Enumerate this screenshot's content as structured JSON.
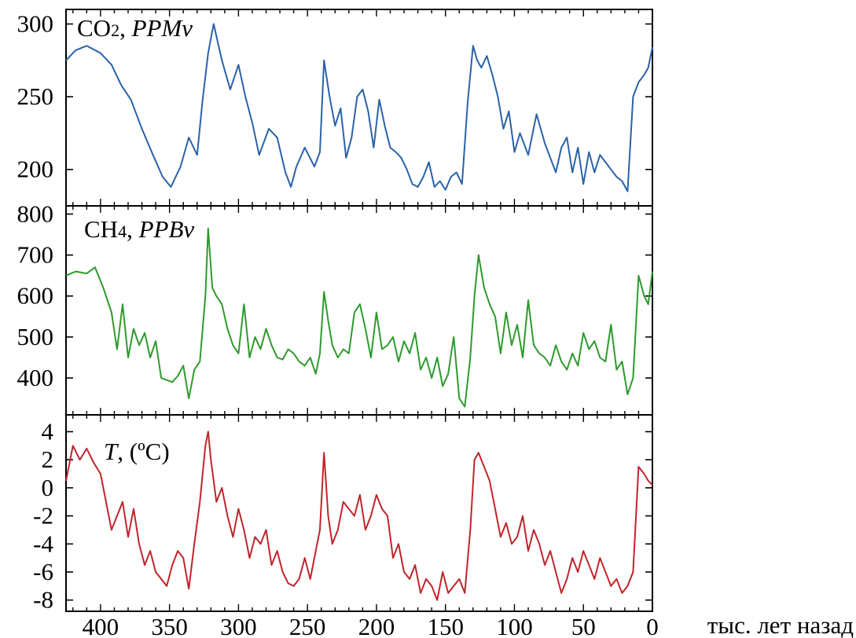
{
  "chart_data": {
    "type": "line",
    "x_unit_label": "тыс. лет назад",
    "xlim": [
      425,
      0
    ],
    "x_ticks": [
      400,
      350,
      300,
      250,
      200,
      150,
      100,
      50,
      0
    ],
    "panels": [
      {
        "id": "co2",
        "label_main": "CO",
        "label_sub": "2",
        "label_sep": ", ",
        "label_italic": "PPMv",
        "label_suffix": "",
        "color": "#2a62a8",
        "ylim": [
          175,
          310
        ],
        "y_ticks": [
          200,
          250,
          300
        ],
        "series": {
          "x": [
            425,
            418,
            410,
            400,
            392,
            385,
            378,
            370,
            362,
            355,
            349,
            342,
            336,
            330,
            326,
            322,
            318,
            312,
            306,
            300,
            295,
            290,
            285,
            278,
            272,
            266,
            262,
            258,
            252,
            245,
            241,
            238,
            234,
            230,
            226,
            222,
            218,
            214,
            210,
            206,
            202,
            198,
            194,
            190,
            186,
            182,
            178,
            174,
            170,
            166,
            162,
            158,
            154,
            150,
            146,
            142,
            138,
            134,
            130,
            127,
            124,
            120,
            116,
            112,
            108,
            104,
            100,
            96,
            90,
            84,
            78,
            74,
            70,
            66,
            62,
            58,
            54,
            50,
            46,
            42,
            38,
            34,
            30,
            26,
            22,
            18,
            14,
            10,
            6,
            3,
            0
          ],
          "y": [
            275,
            282,
            285,
            280,
            272,
            258,
            248,
            228,
            210,
            195,
            188,
            202,
            222,
            210,
            248,
            280,
            300,
            275,
            255,
            272,
            250,
            232,
            210,
            228,
            222,
            198,
            188,
            202,
            215,
            202,
            212,
            275,
            250,
            230,
            242,
            208,
            222,
            250,
            255,
            240,
            215,
            248,
            230,
            215,
            212,
            208,
            200,
            190,
            188,
            195,
            205,
            188,
            192,
            186,
            195,
            198,
            190,
            245,
            285,
            275,
            270,
            278,
            265,
            250,
            228,
            240,
            212,
            225,
            210,
            238,
            218,
            208,
            198,
            215,
            222,
            198,
            215,
            190,
            212,
            198,
            210,
            205,
            200,
            195,
            192,
            185,
            250,
            260,
            265,
            270,
            284
          ]
        }
      },
      {
        "id": "ch4",
        "label_main": "CH",
        "label_sub": "4",
        "label_sep": ", ",
        "label_italic": "PPBv",
        "label_suffix": "",
        "color": "#2e9a2e",
        "ylim": [
          310,
          820
        ],
        "y_ticks": [
          400,
          500,
          600,
          700,
          800
        ],
        "series": {
          "x": [
            425,
            418,
            410,
            404,
            398,
            392,
            388,
            384,
            380,
            376,
            372,
            368,
            364,
            360,
            356,
            352,
            348,
            344,
            340,
            336,
            332,
            328,
            324,
            322,
            319,
            316,
            312,
            308,
            304,
            300,
            296,
            292,
            288,
            284,
            280,
            276,
            272,
            268,
            264,
            260,
            256,
            252,
            248,
            244,
            241,
            238,
            235,
            232,
            228,
            224,
            220,
            216,
            212,
            208,
            204,
            200,
            196,
            192,
            188,
            184,
            180,
            176,
            172,
            168,
            164,
            160,
            156,
            152,
            148,
            144,
            140,
            136,
            132,
            129,
            126,
            122,
            118,
            114,
            110,
            106,
            102,
            98,
            94,
            90,
            86,
            82,
            78,
            74,
            70,
            66,
            62,
            58,
            54,
            50,
            46,
            42,
            38,
            34,
            30,
            26,
            22,
            18,
            14,
            10,
            6,
            3,
            0
          ],
          "y": [
            650,
            660,
            655,
            670,
            620,
            560,
            470,
            580,
            450,
            520,
            480,
            510,
            450,
            490,
            400,
            395,
            390,
            405,
            430,
            350,
            420,
            440,
            600,
            765,
            620,
            600,
            580,
            520,
            480,
            460,
            580,
            450,
            500,
            470,
            520,
            480,
            450,
            445,
            470,
            460,
            440,
            430,
            450,
            410,
            460,
            610,
            540,
            480,
            450,
            470,
            460,
            560,
            580,
            520,
            450,
            560,
            470,
            480,
            500,
            440,
            490,
            460,
            510,
            420,
            450,
            400,
            450,
            380,
            410,
            500,
            350,
            330,
            450,
            600,
            700,
            620,
            580,
            550,
            460,
            560,
            480,
            530,
            450,
            590,
            480,
            460,
            450,
            430,
            480,
            440,
            420,
            460,
            430,
            510,
            470,
            490,
            450,
            440,
            530,
            420,
            440,
            360,
            400,
            650,
            600,
            580,
            660
          ]
        }
      },
      {
        "id": "temp",
        "label_main": "",
        "label_sub": "",
        "label_sep": ", (ºC)",
        "label_italic": "T",
        "label_suffix": "",
        "color": "#c0252a",
        "ylim": [
          -8.8,
          5.2
        ],
        "y_ticks": [
          4,
          2,
          0,
          -2,
          -4,
          -6,
          -8
        ],
        "y_tick_labels": [
          "4",
          "2",
          "0",
          "-2",
          "-4",
          "-6",
          "-8"
        ],
        "series": {
          "x": [
            425,
            420,
            415,
            410,
            405,
            400,
            396,
            392,
            388,
            384,
            380,
            376,
            372,
            368,
            364,
            360,
            356,
            352,
            348,
            344,
            340,
            336,
            332,
            328,
            324,
            322,
            320,
            316,
            312,
            308,
            304,
            300,
            296,
            292,
            288,
            284,
            280,
            276,
            272,
            268,
            264,
            260,
            256,
            252,
            248,
            244,
            241,
            238,
            235,
            232,
            228,
            224,
            220,
            216,
            212,
            208,
            204,
            200,
            196,
            192,
            188,
            184,
            180,
            176,
            172,
            168,
            164,
            160,
            156,
            152,
            148,
            144,
            140,
            136,
            132,
            129,
            126,
            122,
            118,
            114,
            110,
            106,
            102,
            98,
            94,
            90,
            86,
            82,
            78,
            74,
            70,
            66,
            62,
            58,
            54,
            50,
            46,
            42,
            38,
            34,
            30,
            26,
            22,
            18,
            14,
            10,
            6,
            3,
            0
          ],
          "y": [
            0.5,
            3.0,
            2.0,
            2.8,
            1.8,
            1.0,
            -1.0,
            -3.0,
            -2.0,
            -1.0,
            -3.5,
            -1.5,
            -4.0,
            -5.5,
            -4.5,
            -6.0,
            -6.5,
            -7.0,
            -5.5,
            -4.5,
            -5.0,
            -7.2,
            -4.0,
            -1.0,
            3.0,
            4.0,
            2.0,
            -1.0,
            0.0,
            -2.0,
            -3.5,
            -1.5,
            -3.0,
            -5.0,
            -3.5,
            -4.0,
            -3.0,
            -5.5,
            -4.5,
            -6.0,
            -6.8,
            -7.0,
            -6.5,
            -5.0,
            -6.5,
            -4.5,
            -3.0,
            2.5,
            -2.0,
            -4.0,
            -3.0,
            -1.0,
            -1.5,
            -2.0,
            -0.5,
            -3.0,
            -2.0,
            -0.5,
            -1.5,
            -2.0,
            -5.0,
            -4.0,
            -6.0,
            -6.5,
            -5.5,
            -7.5,
            -6.5,
            -7.0,
            -8.0,
            -6.0,
            -7.5,
            -7.0,
            -6.5,
            -7.5,
            -3.0,
            2.0,
            2.5,
            1.5,
            0.5,
            -1.5,
            -3.5,
            -2.5,
            -4.0,
            -3.5,
            -2.0,
            -4.5,
            -3.0,
            -4.0,
            -5.5,
            -4.5,
            -6.0,
            -7.5,
            -6.5,
            -5.0,
            -6.0,
            -4.5,
            -5.5,
            -6.5,
            -5.0,
            -6.0,
            -7.0,
            -6.5,
            -7.5,
            -7.0,
            -6.0,
            1.5,
            1.0,
            0.5,
            0.2
          ]
        }
      }
    ]
  }
}
